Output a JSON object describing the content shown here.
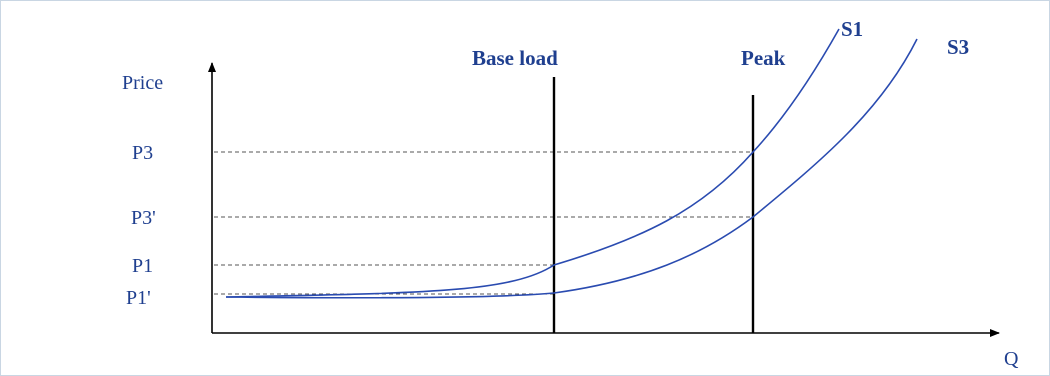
{
  "axes": {
    "y_label": "Price",
    "x_label": "Q"
  },
  "price_levels": [
    "P3",
    "P3'",
    "P1",
    "P1'"
  ],
  "vertical_lines": {
    "base_load": "Base load",
    "peak": "Peak"
  },
  "curves": {
    "s1": "S1",
    "s3": "S3"
  },
  "colors": {
    "text": "#1f3f8f",
    "curve": "#2a4bb0",
    "axis": "#000000",
    "guide": "#555555"
  }
}
